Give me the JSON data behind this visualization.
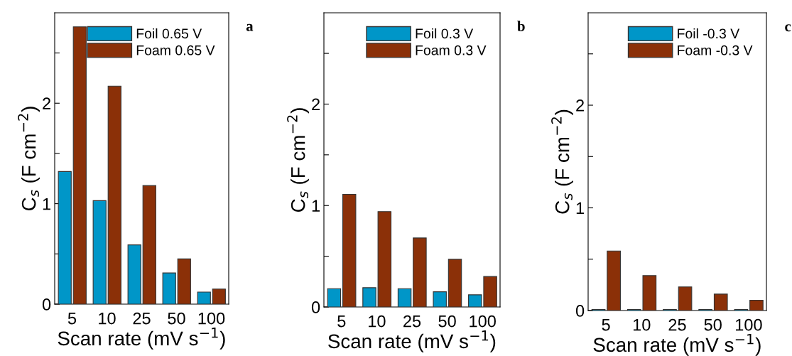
{
  "chart_data": [
    {
      "type": "bar",
      "categories": [
        "5",
        "10",
        "25",
        "50",
        "100"
      ],
      "xlabel": "Scan rate (mV s$^{−1}$)",
      "ylabel": "C$_{s}$ (F cm$^{−2}$)",
      "ylim": [
        0,
        2.9
      ],
      "yticks": [
        0,
        {
          "value": 0.5,
          "label": null
        },
        1,
        {
          "value": 1.5,
          "label": null
        },
        2,
        {
          "value": 2.5,
          "label": null
        }
      ],
      "legend": "top right",
      "annotations": [
        "a"
      ],
      "series": [
        {
          "name": "Foil 0.65 V",
          "color": "#0096c8",
          "values": [
            1.32,
            1.03,
            0.59,
            0.31,
            0.12
          ]
        },
        {
          "name": "Foam 0.65 V",
          "color": "#8b3008",
          "values": [
            2.76,
            2.17,
            1.18,
            0.45,
            0.15
          ]
        }
      ]
    },
    {
      "type": "bar",
      "categories": [
        "5",
        "10",
        "25",
        "50",
        "100"
      ],
      "xlabel": "Scan rate (mV s$^{−1}$)",
      "ylabel": "C$_{s}$ (F cm$^{−2}$)",
      "ylim": [
        0,
        2.9
      ],
      "yticks": [
        0,
        {
          "value": 0.5,
          "label": null
        },
        1,
        {
          "value": 1.5,
          "label": null
        },
        2,
        {
          "value": 2.5,
          "label": null
        }
      ],
      "legend": "top right",
      "annotations": [
        "b"
      ],
      "series": [
        {
          "name": "Foil 0.3 V",
          "color": "#0096c8",
          "values": [
            0.18,
            0.19,
            0.18,
            0.15,
            0.12
          ]
        },
        {
          "name": "Foam 0.3 V",
          "color": "#8b3008",
          "values": [
            1.11,
            0.94,
            0.68,
            0.47,
            0.3
          ]
        }
      ]
    },
    {
      "type": "bar",
      "categories": [
        "5",
        "10",
        "25",
        "50",
        "100"
      ],
      "xlabel": "Scan rate (mV s$^{−1}$)",
      "ylabel": "C$_{s}$ (F cm$^{−2}$)",
      "ylim": [
        0,
        2.9
      ],
      "yticks": [
        0,
        {
          "value": 0.5,
          "label": null
        },
        1,
        {
          "value": 1.5,
          "label": null
        },
        2,
        {
          "value": 2.5,
          "label": null
        }
      ],
      "legend": "top right",
      "annotations": [
        "c"
      ],
      "series": [
        {
          "name": "Foil -0.3 V",
          "color": "#0096c8",
          "values": [
            0.01,
            0.01,
            0.01,
            0.01,
            0.01
          ]
        },
        {
          "name": "Foam -0.3 V",
          "color": "#8b3008",
          "values": [
            0.58,
            0.34,
            0.23,
            0.16,
            0.1
          ]
        }
      ]
    }
  ]
}
